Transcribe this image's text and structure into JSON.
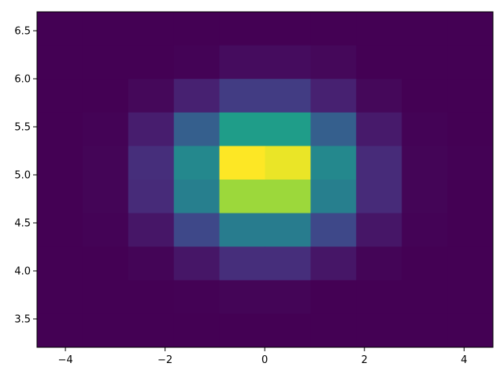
{
  "chart_data": {
    "type": "heatmap",
    "title": "",
    "xlabel": "",
    "ylabel": "",
    "colormap": "viridis",
    "value_scale": "relative count (fraction of max bin)",
    "xlim": [
      -4.57,
      4.58
    ],
    "ylim": [
      3.205,
      6.697
    ],
    "x_bins": 10,
    "y_bins": 10,
    "x_ticks": [
      -4,
      -2,
      0,
      2,
      4
    ],
    "x_tick_labels": [
      "−4",
      "−2",
      "0",
      "2",
      "4"
    ],
    "y_ticks": [
      3.5,
      4.0,
      4.5,
      5.0,
      5.5,
      6.0,
      6.5
    ],
    "y_tick_labels": [
      "3.5",
      "4.0",
      "4.5",
      "5.0",
      "5.5",
      "6.0",
      "6.5"
    ],
    "values_rows_top_to_bottom": [
      [
        0,
        0,
        0,
        0,
        0,
        0,
        0,
        0,
        0,
        0
      ],
      [
        0,
        0,
        0,
        0.005,
        0.03,
        0.03,
        0.02,
        0,
        0,
        0
      ],
      [
        0,
        0,
        0.02,
        0.09,
        0.18,
        0.18,
        0.09,
        0.02,
        0,
        0
      ],
      [
        0,
        0.005,
        0.08,
        0.3,
        0.55,
        0.55,
        0.3,
        0.07,
        0.005,
        0
      ],
      [
        0,
        0.01,
        0.13,
        0.47,
        1.0,
        0.97,
        0.47,
        0.12,
        0.01,
        0.002
      ],
      [
        0,
        0.01,
        0.12,
        0.43,
        0.85,
        0.85,
        0.43,
        0.12,
        0.01,
        0
      ],
      [
        0,
        0.005,
        0.06,
        0.22,
        0.42,
        0.42,
        0.22,
        0.06,
        0.005,
        0
      ],
      [
        0,
        0,
        0.01,
        0.06,
        0.13,
        0.13,
        0.06,
        0.01,
        0,
        0
      ],
      [
        0,
        0,
        0,
        0.003,
        0.01,
        0.01,
        0,
        0,
        0,
        0
      ],
      [
        0,
        0,
        0,
        0,
        0,
        0,
        0,
        0,
        0,
        0
      ]
    ],
    "grid": false,
    "legend": "none"
  }
}
